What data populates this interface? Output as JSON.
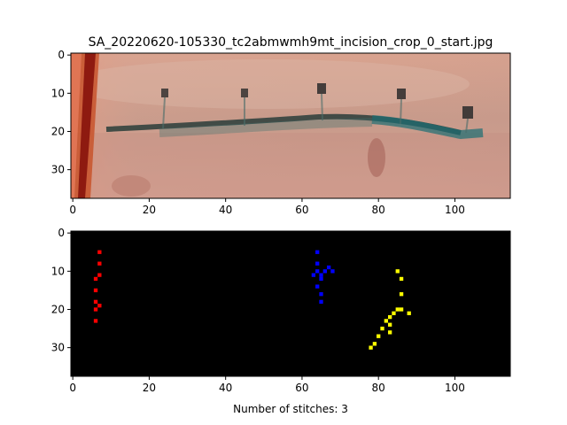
{
  "title": "SA_20220620-105330_tc2abmwmh9mt_incision_crop_0_start.jpg",
  "xlabel": "Number of stitches: 3",
  "chart_data": [
    {
      "type": "image",
      "name": "photo",
      "xlim": [
        -0.5,
        114.5
      ],
      "ylim": [
        37.5,
        -0.5
      ],
      "xticks": [
        0,
        20,
        40,
        60,
        80,
        100
      ],
      "yticks": [
        0,
        10,
        20,
        30
      ]
    },
    {
      "type": "mask",
      "name": "stitch-mask",
      "xlim": [
        -0.5,
        114.5
      ],
      "ylim": [
        37.5,
        -0.5
      ],
      "xticks": [
        0,
        20,
        40,
        60,
        80,
        100
      ],
      "yticks": [
        0,
        10,
        20,
        30
      ],
      "background": "#000000",
      "stitches": [
        {
          "color": "#ff0000",
          "points": [
            [
              7,
              5
            ],
            [
              7,
              8
            ],
            [
              7,
              11
            ],
            [
              6,
              12
            ],
            [
              6,
              15
            ],
            [
              6,
              18
            ],
            [
              7,
              19
            ],
            [
              6,
              20
            ],
            [
              6,
              23
            ]
          ]
        },
        {
          "color": "#0000ff",
          "points": [
            [
              64,
              5
            ],
            [
              64,
              8
            ],
            [
              64,
              10
            ],
            [
              63,
              11
            ],
            [
              65,
              11
            ],
            [
              66,
              10
            ],
            [
              67,
              9
            ],
            [
              68,
              10
            ],
            [
              65,
              12
            ],
            [
              64,
              14
            ],
            [
              65,
              16
            ],
            [
              65,
              18
            ]
          ]
        },
        {
          "color": "#ffff00",
          "points": [
            [
              85,
              10
            ],
            [
              86,
              12
            ],
            [
              86,
              16
            ],
            [
              86,
              20
            ],
            [
              88,
              21
            ],
            [
              85,
              20
            ],
            [
              84,
              21
            ],
            [
              83,
              22
            ],
            [
              82,
              23
            ],
            [
              81,
              25
            ],
            [
              80,
              27
            ],
            [
              79,
              29
            ],
            [
              78,
              30
            ],
            [
              83,
              24
            ],
            [
              83,
              26
            ]
          ]
        }
      ]
    }
  ]
}
